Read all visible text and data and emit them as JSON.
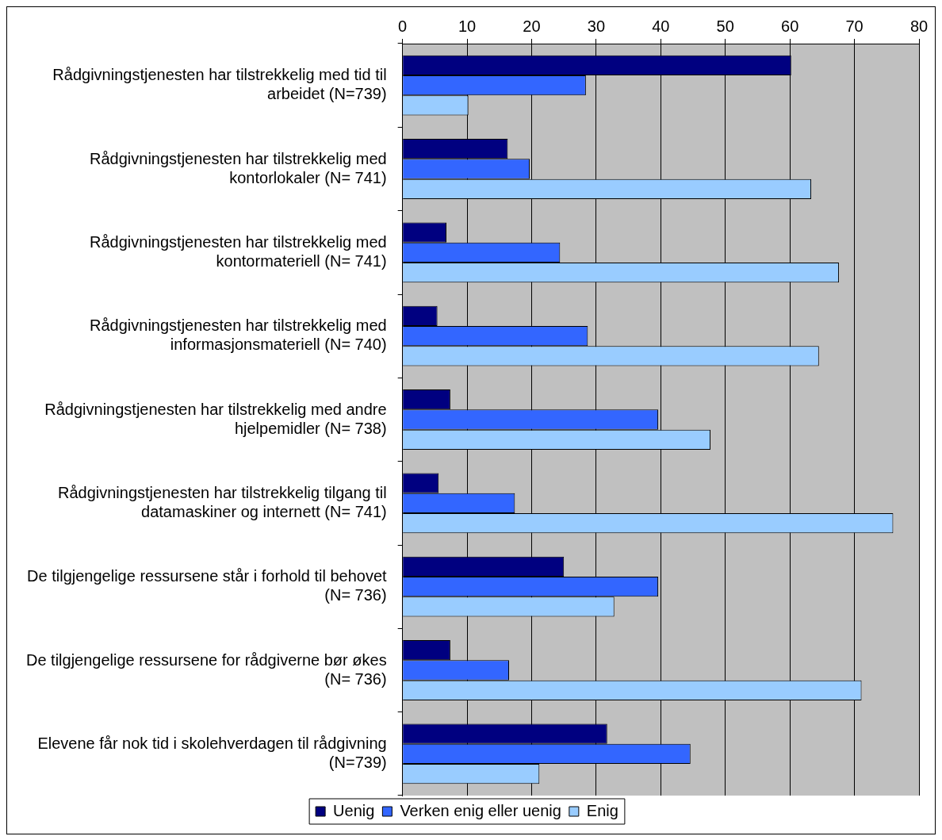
{
  "chart_data": {
    "type": "bar",
    "orientation": "horizontal",
    "categories": [
      "Rådgivningstjenesten har tilstrekkelig med tid til arbeidet (N=739)",
      "Rådgivningstjenesten har tilstrekkelig med kontorlokaler (N= 741)",
      "Rådgivningstjenesten har tilstrekkelig med kontormateriell (N= 741)",
      "Rådgivningstjenesten har tilstrekkelig med informasjonsmateriell (N= 740)",
      "Rådgivningstjenesten har tilstrekkelig med andre hjelpemidler (N= 738)",
      "Rådgivningstjenesten har tilstrekkelig tilgang til datamaskiner og internett (N= 741)",
      "De tilgjengelige ressursene står i forhold til behovet (N= 736)",
      "De tilgjengelige ressursene for rådgiverne bør økes (N= 736)",
      "Elevene får nok tid i skolehverdagen til rådgivning (N=739)"
    ],
    "series": [
      {
        "name": "Uenig",
        "color": "#000080",
        "values": [
          60.2,
          16.3,
          6.8,
          5.4,
          7.4,
          5.6,
          25,
          7.4,
          31.7
        ]
      },
      {
        "name": "Verken enig eller uenig",
        "color": "#3366ff",
        "values": [
          28.4,
          19.7,
          24.4,
          28.7,
          39.6,
          17.4,
          39.6,
          16.5,
          44.6
        ]
      },
      {
        "name": "Enig",
        "color": "#99ccff",
        "values": [
          10.2,
          63.3,
          67.6,
          64.5,
          47.7,
          76,
          32.8,
          71.1,
          21.2
        ]
      }
    ],
    "xlim": [
      0,
      80
    ],
    "xticks": [
      0,
      10,
      20,
      30,
      40,
      50,
      60,
      70,
      80
    ],
    "grid": "x",
    "legend": "bottom"
  }
}
